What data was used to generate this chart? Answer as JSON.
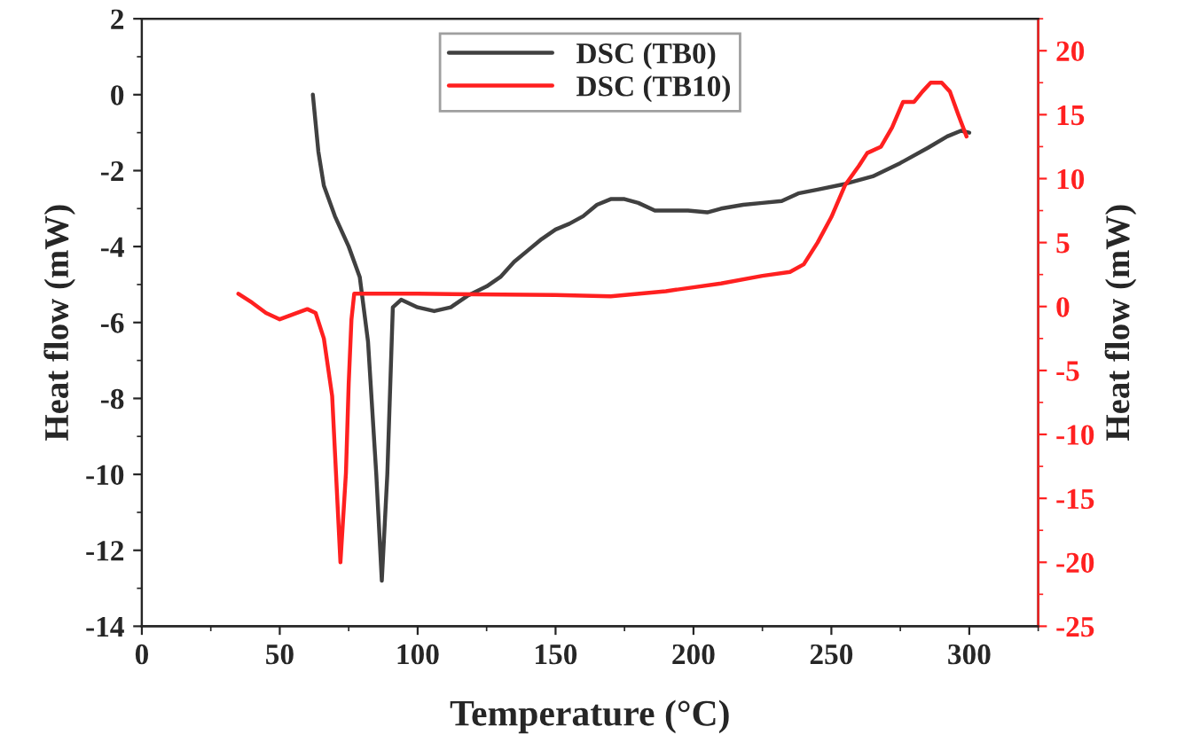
{
  "chart_data": {
    "type": "line",
    "xlabel": "Temperature (°C)",
    "ylabel": "Heat flow (mW)",
    "y2label": "Heat flow (mW)",
    "xlim": [
      0,
      325
    ],
    "xticks": [
      0,
      50,
      100,
      150,
      200,
      250,
      300
    ],
    "ylim": [
      -14,
      2
    ],
    "yticks": [
      -14,
      -12,
      -10,
      -8,
      -6,
      -4,
      -2,
      0,
      2
    ],
    "y2lim": [
      -25,
      22.5
    ],
    "y2ticks": [
      -25,
      -20,
      -15,
      -10,
      -5,
      0,
      5,
      10,
      15,
      20
    ],
    "legend": "top",
    "grid": false,
    "series": [
      {
        "name": "DSC (TB0)",
        "color": "#404040",
        "x": [
          62,
          64,
          66,
          70,
          75,
          79,
          82,
          85,
          87,
          89,
          91,
          94,
          100,
          106,
          112,
          118,
          125,
          130,
          135,
          140,
          145,
          150,
          155,
          160,
          165,
          170,
          175,
          180,
          186,
          192,
          198,
          205,
          210,
          218,
          225,
          232,
          238,
          245,
          255,
          265,
          275,
          285,
          292,
          297,
          300
        ],
        "values": [
          0,
          -1.5,
          -2.4,
          -3.2,
          -4.0,
          -4.8,
          -6.5,
          -10,
          -12.8,
          -10,
          -5.6,
          -5.4,
          -5.6,
          -5.7,
          -5.6,
          -5.3,
          -5.05,
          -4.8,
          -4.4,
          -4.1,
          -3.8,
          -3.55,
          -3.4,
          -3.2,
          -2.9,
          -2.75,
          -2.75,
          -2.85,
          -3.05,
          -3.05,
          -3.05,
          -3.1,
          -3.0,
          -2.9,
          -2.85,
          -2.8,
          -2.6,
          -2.5,
          -2.35,
          -2.15,
          -1.8,
          -1.4,
          -1.1,
          -0.95,
          -1.0
        ]
      },
      {
        "name": "DSC (TB10)",
        "color": "#ff2020",
        "axis": "y2",
        "x": [
          35,
          40,
          45,
          50,
          55,
          60,
          63,
          66,
          69,
          72,
          74,
          75,
          76,
          77,
          100,
          150,
          170,
          190,
          210,
          225,
          235,
          240,
          245,
          250,
          255,
          260,
          263,
          268,
          272,
          276,
          280,
          283,
          286,
          290,
          293,
          296,
          299
        ],
        "values": [
          1.0,
          0.3,
          -0.5,
          -1.0,
          -0.6,
          -0.2,
          -0.5,
          -2.5,
          -7,
          -20,
          -13,
          -6,
          -1,
          1.0,
          1.0,
          0.9,
          0.8,
          1.2,
          1.8,
          2.4,
          2.7,
          3.3,
          5,
          7,
          9.5,
          11,
          12,
          12.5,
          14,
          16,
          16,
          16.8,
          17.5,
          17.5,
          16.8,
          15,
          13.3
        ]
      }
    ]
  }
}
